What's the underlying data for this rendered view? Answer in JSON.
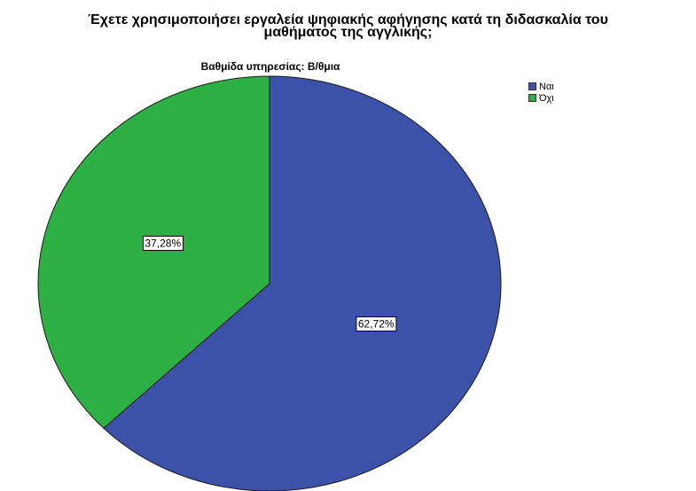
{
  "chart_data": {
    "type": "pie",
    "title_lines": [
      "Έχετε χρησιμοποιήσει εργαλεία ψηφιακής αφήγησης κατά τη διδασκαλία του",
      "μαθήματος της αγγλικής;"
    ],
    "subtitle": "Βαθμίδα υπηρεσίας: Β/θμια",
    "categories": [
      "Ναι",
      "Όχι"
    ],
    "values": [
      62.72,
      37.28
    ],
    "data_labels": [
      "62,72%",
      "37,28%"
    ],
    "colors": [
      "#3C52A8",
      "#2DB043"
    ],
    "legend_position": "top-right"
  }
}
